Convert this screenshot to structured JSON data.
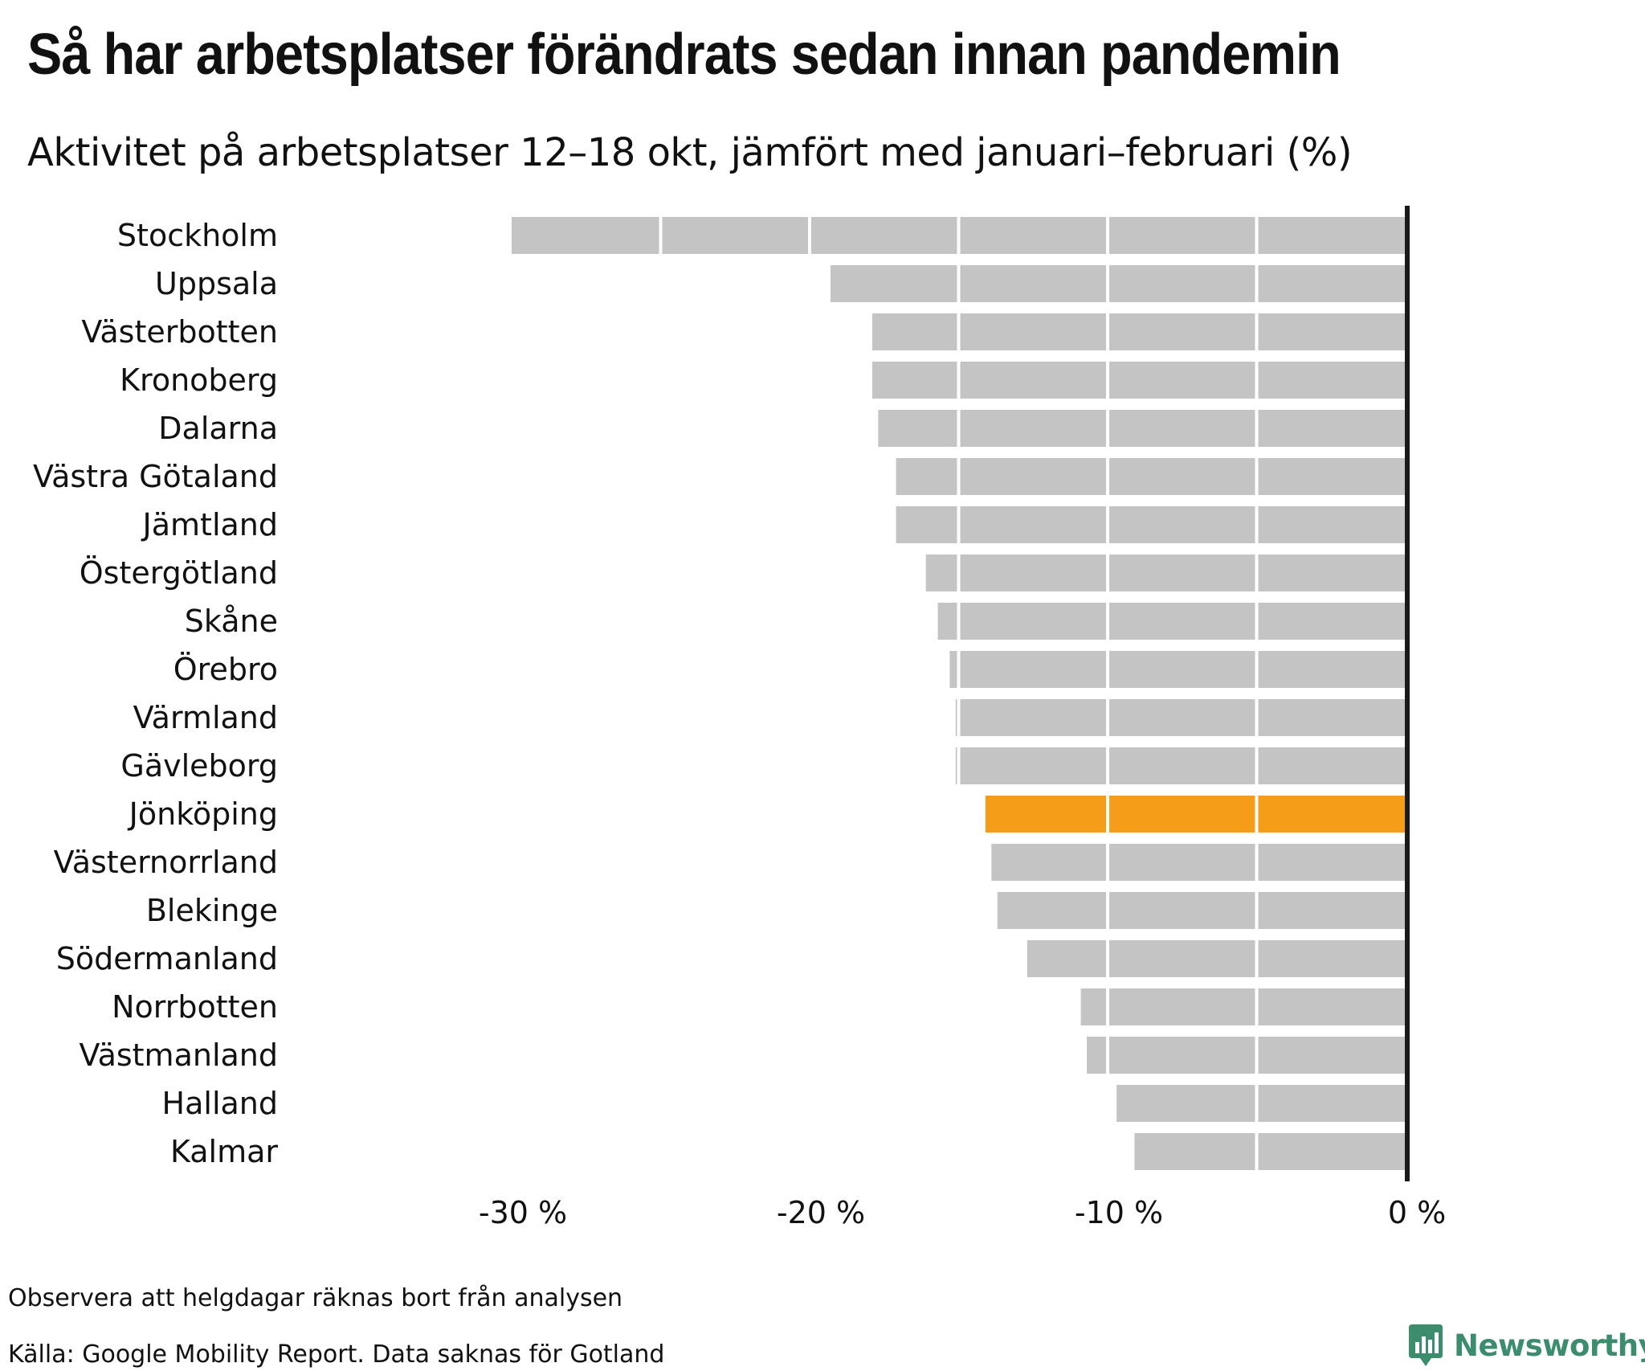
{
  "title": "Så har arbetsplatser förändrats sedan innan pandemin",
  "subtitle": "Aktivitet på arbetsplatser 12–18 okt, jämfört med januari–februari (%)",
  "notes": [
    "Observera att helgdagar räknas bort från analysen",
    "Källa: Google Mobility Report. Data saknas för Gotland"
  ],
  "brand": {
    "name": "Newsworthy",
    "icon": "newsworthy-logo-icon",
    "color": "#3c8c6e"
  },
  "colors": {
    "bar": "#c4c4c4",
    "highlight": "#f59c18",
    "zero_line": "#1a1a1a",
    "gridline": "#ffffff"
  },
  "chart_data": {
    "type": "bar",
    "orientation": "horizontal",
    "categories": [
      "Stockholm",
      "Uppsala",
      "Västerbotten",
      "Kronoberg",
      "Dalarna",
      "Västra Götaland",
      "Jämtland",
      "Östergötland",
      "Skåne",
      "Örebro",
      "Värmland",
      "Gävleborg",
      "Jönköping",
      "Västernorrland",
      "Blekinge",
      "Södermanland",
      "Norrbotten",
      "Västmanland",
      "Halland",
      "Kalmar"
    ],
    "values": [
      -30,
      -19.3,
      -17.9,
      -17.9,
      -17.7,
      -17.1,
      -17.1,
      -16.1,
      -15.7,
      -15.3,
      -15.1,
      -15.1,
      -14.1,
      -13.9,
      -13.7,
      -12.7,
      -10.9,
      -10.7,
      -9.7,
      -9.1
    ],
    "highlight": "Jönköping",
    "xlim": [
      -30,
      0
    ],
    "x_ticks": [
      -30,
      -20,
      -10,
      0
    ],
    "tick_labels": [
      "-30 %",
      "-20 %",
      "-10 %",
      "0 %"
    ],
    "gridlines_at": [
      -25,
      -20,
      -15,
      -10,
      -5
    ],
    "xlabel": "",
    "ylabel": ""
  }
}
